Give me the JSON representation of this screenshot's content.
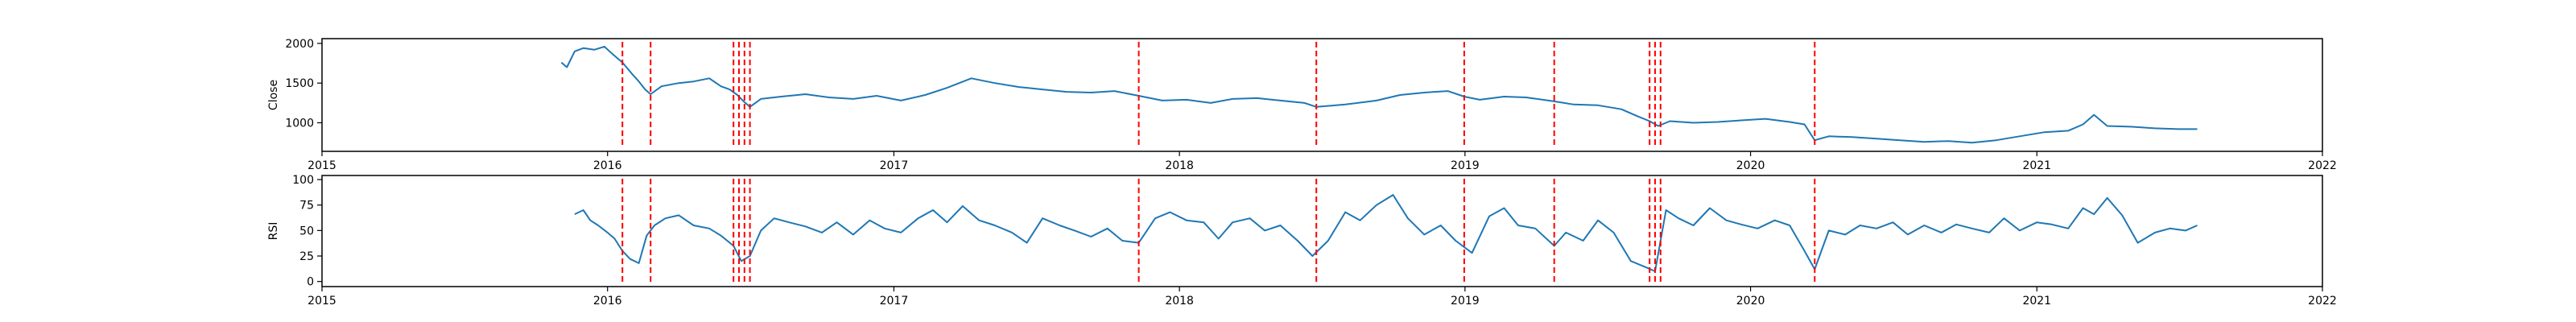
{
  "chart_data": [
    {
      "type": "line",
      "ylabel": "Close",
      "xlabel": "",
      "title": "",
      "xlim": [
        "2015-01-01",
        "2022-01-01"
      ],
      "ylim": [
        640,
        2060
      ],
      "x_ticks": [
        "2015",
        "2016",
        "2017",
        "2018",
        "2019",
        "2020",
        "2021",
        "2022"
      ],
      "y_ticks": [
        1000,
        1500,
        2000
      ],
      "line_color": "#1f77b4",
      "event_line_color": "#ff0000",
      "event_dates": [
        "2016-01-20",
        "2016-02-25",
        "2016-06-10",
        "2016-06-17",
        "2016-06-24",
        "2016-07-01",
        "2017-11-10",
        "2018-06-25",
        "2018-12-31",
        "2019-04-25",
        "2019-08-25",
        "2019-09-01",
        "2019-09-08",
        "2020-03-23"
      ],
      "series": [
        {
          "x": [
            "2015-11-03",
            "2015-11-10",
            "2015-11-20",
            "2015-12-01",
            "2015-12-15",
            "2015-12-28",
            "2016-01-08",
            "2016-01-20",
            "2016-02-01",
            "2016-02-10",
            "2016-02-18",
            "2016-02-25",
            "2016-03-10",
            "2016-04-01",
            "2016-04-20",
            "2016-05-10",
            "2016-05-25",
            "2016-06-05",
            "2016-06-15",
            "2016-06-24",
            "2016-07-01",
            "2016-07-15",
            "2016-08-10",
            "2016-09-10",
            "2016-10-10",
            "2016-11-10",
            "2016-12-10",
            "2017-01-10",
            "2017-02-10",
            "2017-03-10",
            "2017-04-10",
            "2017-05-10",
            "2017-06-10",
            "2017-07-10",
            "2017-08-10",
            "2017-09-10",
            "2017-10-10",
            "2017-11-10",
            "2017-12-10",
            "2018-01-10",
            "2018-02-10",
            "2018-03-10",
            "2018-04-10",
            "2018-05-10",
            "2018-06-10",
            "2018-06-25",
            "2018-08-01",
            "2018-09-10",
            "2018-10-10",
            "2018-11-10",
            "2018-12-10",
            "2018-12-31",
            "2019-01-20",
            "2019-02-20",
            "2019-03-20",
            "2019-04-25",
            "2019-05-20",
            "2019-06-20",
            "2019-07-20",
            "2019-08-10",
            "2019-08-25",
            "2019-09-05",
            "2019-09-20",
            "2019-10-20",
            "2019-11-20",
            "2019-12-20",
            "2020-01-20",
            "2020-02-20",
            "2020-03-10",
            "2020-03-23",
            "2020-04-10",
            "2020-05-10",
            "2020-06-10",
            "2020-07-10",
            "2020-08-10",
            "2020-09-10",
            "2020-10-10",
            "2020-11-10",
            "2020-12-10",
            "2021-01-10",
            "2021-02-10",
            "2021-03-01",
            "2021-03-15",
            "2021-04-01",
            "2021-05-01",
            "2021-06-01",
            "2021-07-01",
            "2021-07-25"
          ],
          "y": [
            1760,
            1700,
            1900,
            1940,
            1920,
            1960,
            1860,
            1760,
            1620,
            1520,
            1420,
            1360,
            1460,
            1500,
            1520,
            1560,
            1460,
            1420,
            1350,
            1260,
            1200,
            1300,
            1330,
            1360,
            1320,
            1300,
            1340,
            1280,
            1350,
            1440,
            1560,
            1500,
            1450,
            1420,
            1390,
            1380,
            1400,
            1340,
            1280,
            1290,
            1250,
            1300,
            1310,
            1280,
            1250,
            1200,
            1230,
            1280,
            1350,
            1380,
            1400,
            1330,
            1290,
            1330,
            1320,
            1270,
            1230,
            1220,
            1170,
            1080,
            1020,
            960,
            1020,
            1000,
            1010,
            1030,
            1050,
            1010,
            980,
            780,
            830,
            820,
            800,
            780,
            760,
            770,
            750,
            780,
            830,
            880,
            900,
            980,
            1100,
            960,
            950,
            930,
            920,
            920
          ]
        }
      ]
    },
    {
      "type": "line",
      "ylabel": "RSI",
      "xlabel": "",
      "title": "",
      "xlim": [
        "2015-01-01",
        "2022-01-01"
      ],
      "ylim": [
        -5,
        104
      ],
      "x_ticks": [
        "2015",
        "2016",
        "2017",
        "2018",
        "2019",
        "2020",
        "2021",
        "2022"
      ],
      "y_ticks": [
        0,
        25,
        50,
        75,
        100
      ],
      "line_color": "#1f77b4",
      "event_line_color": "#ff0000",
      "event_dates": [
        "2016-01-20",
        "2016-02-25",
        "2016-06-10",
        "2016-06-17",
        "2016-06-24",
        "2016-07-01",
        "2017-11-10",
        "2018-06-25",
        "2018-12-31",
        "2019-04-25",
        "2019-08-25",
        "2019-09-01",
        "2019-09-08",
        "2020-03-23"
      ],
      "series": [
        {
          "x": [
            "2015-11-20",
            "2015-12-01",
            "2015-12-10",
            "2015-12-20",
            "2016-01-01",
            "2016-01-10",
            "2016-01-20",
            "2016-01-30",
            "2016-02-10",
            "2016-02-20",
            "2016-03-01",
            "2016-03-15",
            "2016-04-01",
            "2016-04-20",
            "2016-05-10",
            "2016-05-25",
            "2016-06-10",
            "2016-06-20",
            "2016-07-01",
            "2016-07-15",
            "2016-08-01",
            "2016-08-20",
            "2016-09-10",
            "2016-10-01",
            "2016-10-20",
            "2016-11-10",
            "2016-12-01",
            "2016-12-20",
            "2017-01-10",
            "2017-02-01",
            "2017-02-20",
            "2017-03-10",
            "2017-03-30",
            "2017-04-20",
            "2017-05-10",
            "2017-06-01",
            "2017-06-20",
            "2017-07-10",
            "2017-08-01",
            "2017-08-20",
            "2017-09-10",
            "2017-10-01",
            "2017-10-20",
            "2017-11-10",
            "2017-12-01",
            "2017-12-20",
            "2018-01-10",
            "2018-02-01",
            "2018-02-20",
            "2018-03-10",
            "2018-04-01",
            "2018-04-20",
            "2018-05-10",
            "2018-06-01",
            "2018-06-20",
            "2018-07-10",
            "2018-08-01",
            "2018-08-20",
            "2018-09-10",
            "2018-10-01",
            "2018-10-20",
            "2018-11-10",
            "2018-12-01",
            "2018-12-20",
            "2019-01-10",
            "2019-02-01",
            "2019-02-20",
            "2019-03-10",
            "2019-04-01",
            "2019-04-25",
            "2019-05-10",
            "2019-06-01",
            "2019-06-20",
            "2019-07-10",
            "2019-08-01",
            "2019-08-20",
            "2019-09-01",
            "2019-09-15",
            "2019-10-01",
            "2019-10-20",
            "2019-11-10",
            "2019-12-01",
            "2019-12-20",
            "2020-01-10",
            "2020-02-01",
            "2020-02-20",
            "2020-03-10",
            "2020-03-23",
            "2020-04-10",
            "2020-05-01",
            "2020-05-20",
            "2020-06-10",
            "2020-07-01",
            "2020-07-20",
            "2020-08-10",
            "2020-09-01",
            "2020-09-20",
            "2020-10-10",
            "2020-11-01",
            "2020-11-20",
            "2020-12-10",
            "2021-01-01",
            "2021-01-20",
            "2021-02-10",
            "2021-03-01",
            "2021-03-15",
            "2021-04-01",
            "2021-04-20",
            "2021-05-10",
            "2021-06-01",
            "2021-06-20",
            "2021-07-10",
            "2021-07-25"
          ],
          "y": [
            66,
            70,
            60,
            55,
            48,
            42,
            30,
            22,
            18,
            45,
            55,
            62,
            65,
            55,
            52,
            45,
            35,
            20,
            25,
            50,
            62,
            58,
            54,
            48,
            58,
            46,
            60,
            52,
            48,
            62,
            70,
            58,
            74,
            60,
            55,
            48,
            38,
            62,
            55,
            50,
            44,
            52,
            40,
            38,
            62,
            68,
            60,
            58,
            42,
            58,
            62,
            50,
            55,
            40,
            25,
            40,
            68,
            60,
            75,
            85,
            62,
            46,
            55,
            40,
            28,
            64,
            72,
            55,
            52,
            35,
            48,
            40,
            60,
            48,
            20,
            14,
            10,
            70,
            62,
            55,
            72,
            60,
            56,
            52,
            60,
            55,
            30,
            12,
            50,
            46,
            55,
            52,
            58,
            46,
            55,
            48,
            56,
            52,
            48,
            62,
            50,
            58,
            56,
            52,
            72,
            66,
            82,
            65,
            38,
            48,
            52,
            50,
            55
          ]
        }
      ]
    }
  ]
}
